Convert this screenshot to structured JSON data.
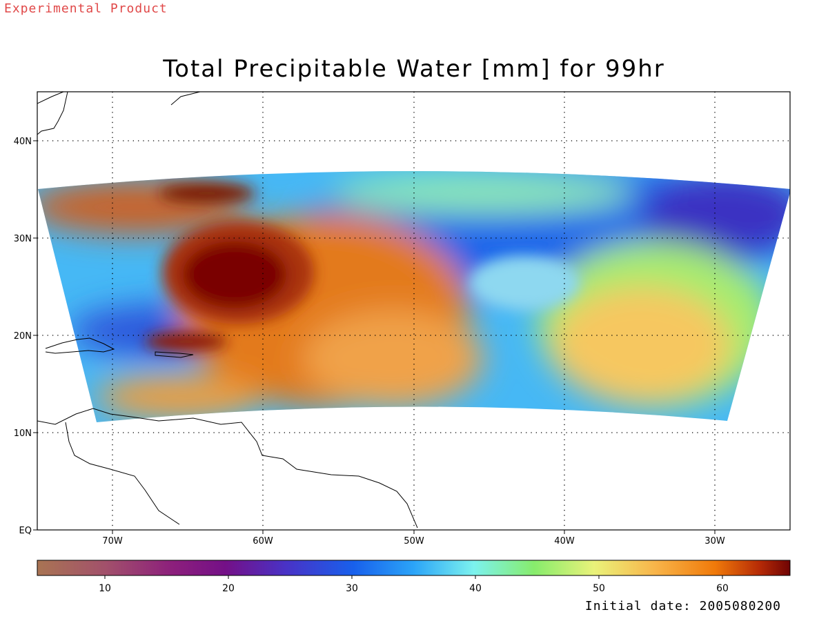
{
  "header": {
    "product_label": "Experimental Product",
    "title": "Total Precipitable Water [mm] for 99hr",
    "initial_date_label": "Initial date: 2005080200"
  },
  "map": {
    "projection": "lat-lon",
    "lon_range": [
      -75,
      -25
    ],
    "lat_range": [
      0,
      45
    ],
    "lat_ticks": [
      {
        "value": 0,
        "label": "EQ"
      },
      {
        "value": 10,
        "label": "10N"
      },
      {
        "value": 20,
        "label": "20N"
      },
      {
        "value": 30,
        "label": "30N"
      },
      {
        "value": 40,
        "label": "40N"
      }
    ],
    "lon_ticks": [
      {
        "value": -70,
        "label": "70W"
      },
      {
        "value": -60,
        "label": "60W"
      },
      {
        "value": -50,
        "label": "50W"
      },
      {
        "value": -40,
        "label": "40W"
      },
      {
        "value": -30,
        "label": "30W"
      }
    ],
    "gridlines": "dotted",
    "features": {
      "hurricane_center": {
        "lon": -61.5,
        "lat": 26,
        "tpw_mm": 65
      },
      "dry_zone_center": {
        "lon": -42,
        "lat": 25,
        "tpw_mm": 25
      },
      "moist_region_east": {
        "lon": -35,
        "lat": 18,
        "tpw_mm": 50
      }
    }
  },
  "colorbar": {
    "range": [
      4.5,
      65.5
    ],
    "ticks": [
      10,
      20,
      30,
      40,
      50,
      60
    ],
    "tick_labels": [
      "10",
      "20",
      "30",
      "40",
      "50",
      "60"
    ],
    "colors": {
      "min": "#a97453",
      "violet": "#7b0f8a",
      "blue": "#0c6cf5",
      "cyan": "#7cf2ee",
      "green": "#89ef6f",
      "yellow": "#f6f27a",
      "orange": "#f37d0e",
      "max": "#7a0606"
    }
  }
}
